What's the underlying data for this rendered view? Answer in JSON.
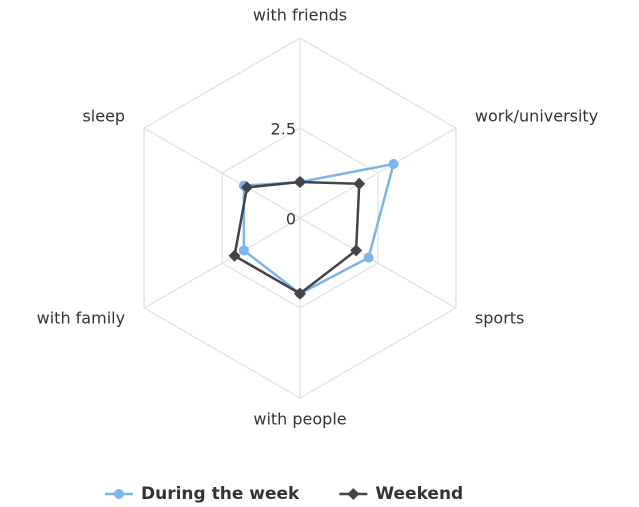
{
  "chart_data": {
    "type": "radar",
    "categories": [
      "with friends",
      "work/university",
      "sports",
      "with people",
      "with family",
      "sleep"
    ],
    "series": [
      {
        "name": "During the week",
        "color": "#7cb5ec",
        "values": [
          1.0,
          3.0,
          2.2,
          2.1,
          1.8,
          1.8
        ]
      },
      {
        "name": "Weekend",
        "color": "#434348",
        "values": [
          1.0,
          1.9,
          1.8,
          2.1,
          2.1,
          1.7
        ]
      }
    ],
    "ylim": [
      0,
      5
    ],
    "yticks": [
      0,
      2.5
    ],
    "grid": true
  }
}
